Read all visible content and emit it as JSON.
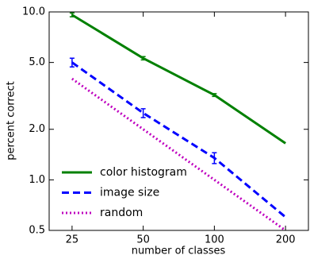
{
  "chart_data": {
    "type": "line",
    "xlabel": "number of classes",
    "ylabel": "percent correct",
    "x": [
      25,
      50,
      100,
      200
    ],
    "xlog": true,
    "ylog": true,
    "xlim": [
      20,
      250
    ],
    "ylim": [
      0.5,
      10
    ],
    "xticks": [
      25,
      50,
      100,
      200
    ],
    "yticks": [
      0.5,
      {
        "value": 1,
        "label": "1.0"
      },
      {
        "value": 2,
        "label": "2.0"
      },
      {
        "value": 5,
        "label": "5.0"
      },
      {
        "value": 10,
        "label": "10.0"
      }
    ],
    "legend": "lower left",
    "series": [
      {
        "name": "color histogram",
        "color": "#008000",
        "style": "solid",
        "values": [
          9.6,
          5.3,
          3.2,
          1.65
        ],
        "errors": [
          0.25,
          0.12,
          0.06,
          null
        ]
      },
      {
        "name": "image size",
        "color": "#0000ff",
        "style": "dashed",
        "values": [
          5.0,
          2.5,
          1.35,
          0.6
        ],
        "errors": [
          0.3,
          0.15,
          0.1,
          null
        ]
      },
      {
        "name": "random",
        "color": "#bf00bf",
        "style": "dotted",
        "values": [
          4,
          2,
          1,
          0.5
        ],
        "errors": [
          null,
          null,
          null,
          null
        ]
      }
    ]
  }
}
